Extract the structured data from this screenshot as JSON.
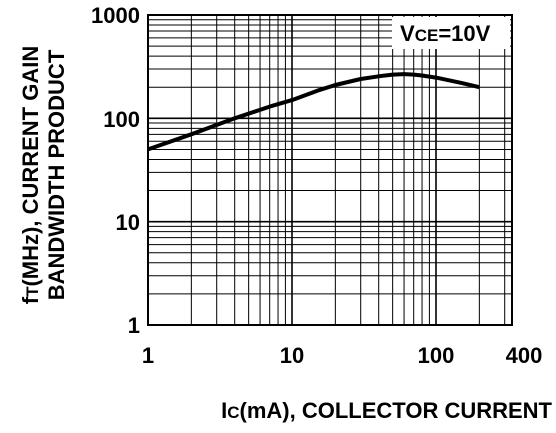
{
  "chart_data": {
    "type": "line",
    "title": "",
    "xlabel": "Ic(mA), COLLECTOR CURRENT",
    "ylabel_line1": "fT(MHz), CURRENT GAIN",
    "ylabel_line2": "BANDWIDTH PRODUCT",
    "x_scale": "log",
    "y_scale": "log",
    "xlim": [
      1,
      300
    ],
    "ylim": [
      1,
      1000
    ],
    "x_tick_labels": [
      "1",
      "10",
      "100",
      "400"
    ],
    "y_tick_labels": [
      "1",
      "10",
      "100",
      "1000"
    ],
    "grid": true,
    "annotation": "VCE=10V",
    "series": [
      {
        "x": [
          1,
          2,
          4,
          7,
          10,
          15,
          20,
          30,
          40,
          50,
          60,
          70,
          80,
          100,
          150,
          200
        ],
        "y": [
          50,
          70,
          100,
          130,
          150,
          185,
          210,
          240,
          255,
          265,
          268,
          265,
          260,
          248,
          220,
          200
        ]
      }
    ],
    "colors": {
      "line": "#000000",
      "grid": "#000000",
      "background": "#ffffff"
    }
  }
}
